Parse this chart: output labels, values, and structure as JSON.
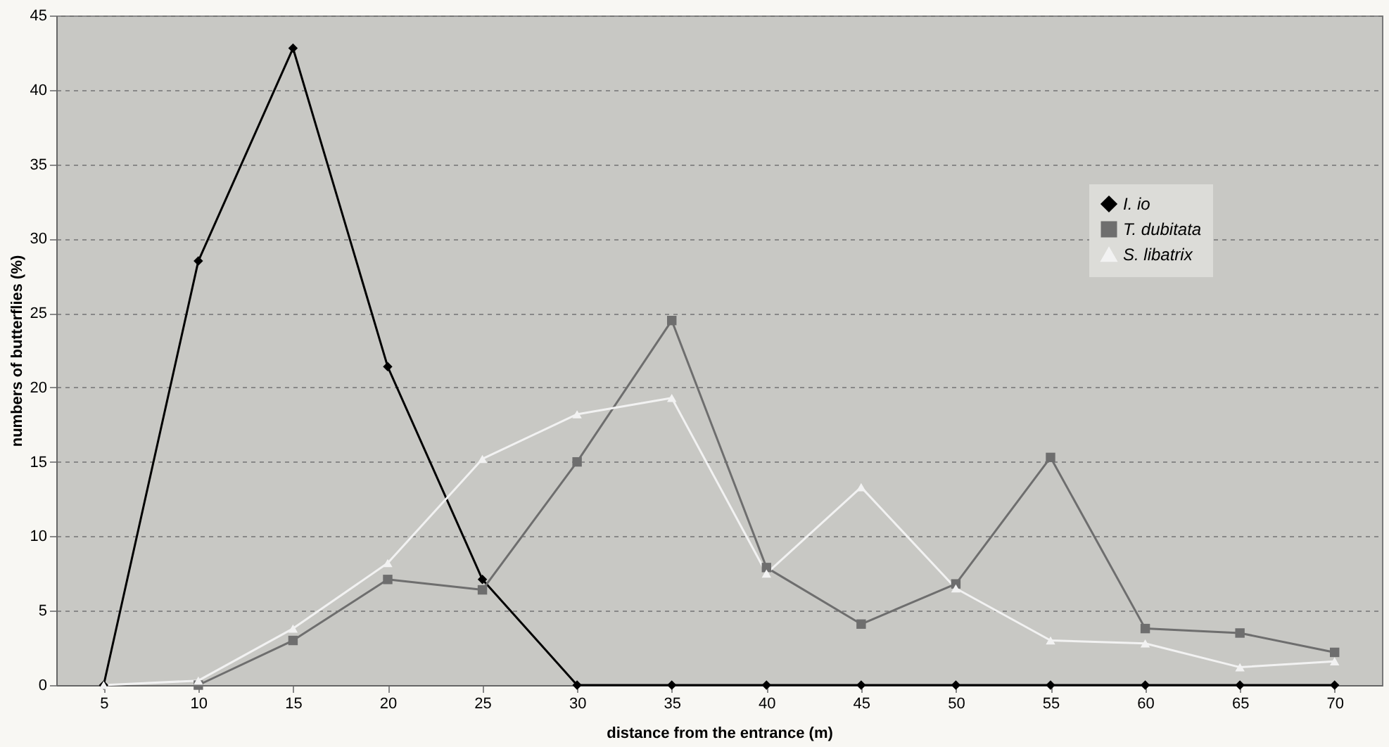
{
  "chart_data": {
    "type": "line",
    "xlabel": "distance from the entrance (m)",
    "ylabel": "numbers of butterflies (%)",
    "categories": [
      "5",
      "10",
      "15",
      "20",
      "25",
      "30",
      "35",
      "40",
      "45",
      "50",
      "55",
      "60",
      "65",
      "70"
    ],
    "series": [
      {
        "name": "I. io",
        "color": "#000000",
        "marker": "diamond",
        "values": [
          0,
          28.5,
          42.8,
          21.4,
          7.1,
          0,
          0,
          0,
          0,
          0,
          0,
          0,
          0,
          0
        ]
      },
      {
        "name": "T. dubitata",
        "color": "#6e6e6e",
        "marker": "square",
        "values": [
          null,
          0,
          3.0,
          7.1,
          6.4,
          15.0,
          24.5,
          7.9,
          4.1,
          6.8,
          15.3,
          3.8,
          3.5,
          2.2
        ]
      },
      {
        "name": "S. libatrix",
        "color": "#f2f2f2",
        "marker": "triangle",
        "values": [
          0,
          0.3,
          3.8,
          8.2,
          15.2,
          18.2,
          19.3,
          7.5,
          13.3,
          6.5,
          3.0,
          2.8,
          1.2,
          1.6
        ]
      }
    ],
    "ylim": [
      0,
      45
    ],
    "yticks": [
      0,
      5,
      10,
      15,
      20,
      25,
      30,
      35,
      40,
      45
    ],
    "grid": "y",
    "legend": "top right",
    "line_style": "solid"
  }
}
